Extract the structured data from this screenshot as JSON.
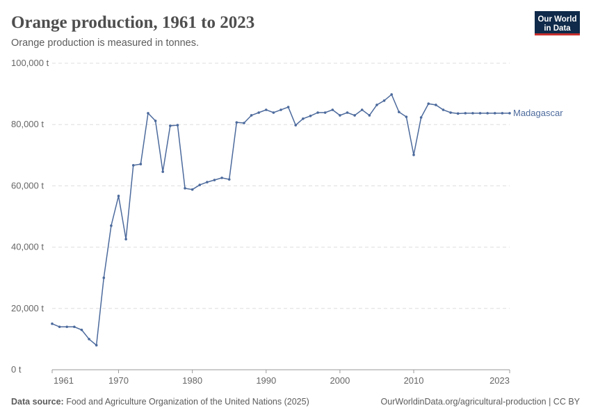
{
  "chart_data": {
    "type": "line",
    "title": "Orange production, 1961 to 2023",
    "subtitle": "Orange production is measured in tonnes.",
    "source_label": "Data source:",
    "source": "Food and Agriculture Organization of the United Nations (2025)",
    "url": "OurWorldinData.org/agricultural-production | CC BY",
    "logo": [
      "Our World",
      "in Data"
    ],
    "x": [
      1961,
      1962,
      1963,
      1964,
      1965,
      1966,
      1967,
      1968,
      1969,
      1970,
      1971,
      1972,
      1973,
      1974,
      1975,
      1976,
      1977,
      1978,
      1979,
      1980,
      1981,
      1982,
      1983,
      1984,
      1985,
      1986,
      1987,
      1988,
      1989,
      1990,
      1991,
      1992,
      1993,
      1994,
      1995,
      1996,
      1997,
      1998,
      1999,
      2000,
      2001,
      2002,
      2003,
      2004,
      2005,
      2006,
      2007,
      2008,
      2009,
      2010,
      2011,
      2012,
      2013,
      2014,
      2015,
      2016,
      2017,
      2018,
      2019,
      2020,
      2021,
      2022,
      2023
    ],
    "series": [
      {
        "name": "Madagascar",
        "color": "#4c6a9c",
        "values": [
          15000,
          14000,
          14000,
          14000,
          13000,
          10000,
          8000,
          30000,
          47000,
          56700,
          42600,
          66700,
          67100,
          83700,
          81200,
          64600,
          79600,
          79800,
          59200,
          58800,
          60300,
          61200,
          61900,
          62600,
          62100,
          80700,
          80500,
          83000,
          83900,
          84800,
          83900,
          84800,
          85700,
          79800,
          81900,
          82800,
          83900,
          83900,
          84800,
          83000,
          83900,
          83000,
          84800,
          83000,
          86400,
          87800,
          89800,
          84100,
          82500,
          70100,
          82300,
          86800,
          86400,
          84800,
          83900,
          83600,
          83700,
          83700,
          83700,
          83700,
          83700,
          83700,
          83700
        ]
      }
    ],
    "xlim": [
      1961,
      2023
    ],
    "xticks": [
      1961,
      1970,
      1980,
      1990,
      2000,
      2010,
      2023
    ],
    "ylim": [
      0,
      100000
    ],
    "yticks": [
      {
        "value": 0,
        "label": "0 t"
      },
      {
        "value": 20000,
        "label": "20,000 t"
      },
      {
        "value": 40000,
        "label": "40,000 t"
      },
      {
        "value": 60000,
        "label": "60,000 t"
      },
      {
        "value": 80000,
        "label": "80,000 t"
      },
      {
        "value": 100000,
        "label": "100,000 t"
      }
    ],
    "grid": true
  }
}
